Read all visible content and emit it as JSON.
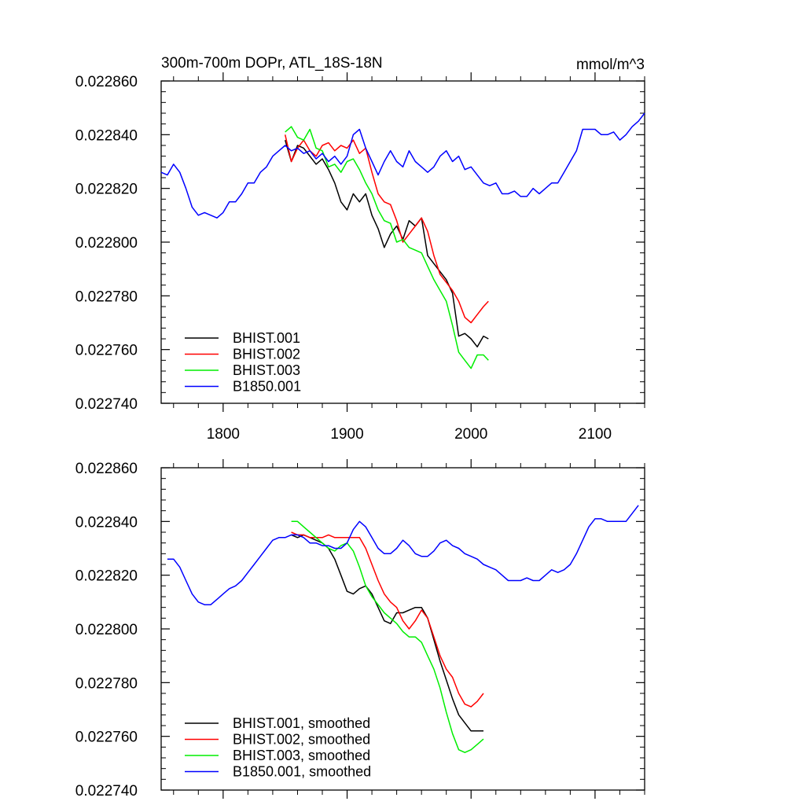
{
  "chart_data": [
    {
      "type": "line",
      "title": "300m-700m DOPr, ATL_18S-18N",
      "units": "mmol/m^3",
      "xlim": [
        1750,
        2140
      ],
      "ylim": [
        0.02274,
        0.02286
      ],
      "xticks": [
        1800,
        1900,
        2000,
        2100
      ],
      "xtick_labels": [
        "1800",
        "1900",
        "2000",
        "2100"
      ],
      "yticks": [
        0.02274,
        0.02276,
        0.02278,
        0.0228,
        0.02282,
        0.02284,
        0.02286
      ],
      "ytick_labels": [
        "0.022740",
        "0.022760",
        "0.022780",
        "0.022800",
        "0.022820",
        "0.022840",
        "0.022860"
      ],
      "legend_position": "bottom-left",
      "series": [
        {
          "name": "BHIST.001",
          "color": "#000000",
          "x": [
            1850,
            1855,
            1860,
            1865,
            1870,
            1875,
            1880,
            1885,
            1890,
            1895,
            1900,
            1905,
            1910,
            1915,
            1920,
            1925,
            1930,
            1935,
            1940,
            1945,
            1950,
            1955,
            1960,
            1965,
            1970,
            1975,
            1980,
            1985,
            1990,
            1995,
            2000,
            2005,
            2010,
            2014
          ],
          "values": [
            0.022838,
            0.02283,
            0.022836,
            0.022835,
            0.022832,
            0.022829,
            0.022831,
            0.022827,
            0.022822,
            0.022815,
            0.022812,
            0.022818,
            0.022815,
            0.022818,
            0.02281,
            0.022805,
            0.022798,
            0.022803,
            0.022806,
            0.022801,
            0.022808,
            0.022806,
            0.022809,
            0.022795,
            0.022792,
            0.022789,
            0.022786,
            0.022781,
            0.022765,
            0.022766,
            0.022764,
            0.022761,
            0.022765,
            0.022764
          ]
        },
        {
          "name": "BHIST.002",
          "color": "#ff0000",
          "x": [
            1850,
            1855,
            1860,
            1865,
            1870,
            1875,
            1880,
            1885,
            1890,
            1895,
            1900,
            1905,
            1910,
            1915,
            1920,
            1925,
            1930,
            1935,
            1940,
            1945,
            1950,
            1955,
            1960,
            1965,
            1970,
            1975,
            1980,
            1985,
            1990,
            1995,
            2000,
            2005,
            2010,
            2014
          ],
          "values": [
            0.02284,
            0.02283,
            0.022835,
            0.022838,
            0.022834,
            0.022832,
            0.022836,
            0.022837,
            0.022834,
            0.022836,
            0.022835,
            0.022838,
            0.022833,
            0.022835,
            0.022826,
            0.022818,
            0.022815,
            0.022814,
            0.022808,
            0.0228,
            0.022803,
            0.022806,
            0.022809,
            0.022804,
            0.022795,
            0.022788,
            0.022785,
            0.022782,
            0.022778,
            0.022772,
            0.02277,
            0.022773,
            0.022776,
            0.022778
          ]
        },
        {
          "name": "BHIST.003",
          "color": "#00ee00",
          "x": [
            1850,
            1855,
            1860,
            1865,
            1870,
            1875,
            1880,
            1885,
            1890,
            1895,
            1900,
            1905,
            1910,
            1915,
            1920,
            1925,
            1930,
            1935,
            1940,
            1945,
            1950,
            1955,
            1960,
            1965,
            1970,
            1975,
            1980,
            1985,
            1990,
            1995,
            2000,
            2005,
            2010,
            2014
          ],
          "values": [
            0.022841,
            0.022843,
            0.022839,
            0.022838,
            0.022842,
            0.022835,
            0.022834,
            0.022828,
            0.022829,
            0.022826,
            0.02283,
            0.022831,
            0.022827,
            0.022822,
            0.022818,
            0.022812,
            0.022808,
            0.022807,
            0.0228,
            0.022801,
            0.022798,
            0.022797,
            0.022796,
            0.022791,
            0.022786,
            0.022782,
            0.022778,
            0.022769,
            0.022759,
            0.022756,
            0.022753,
            0.022758,
            0.022758,
            0.022756
          ]
        },
        {
          "name": "B1850.001",
          "color": "#0000ff",
          "x": [
            1750,
            1755,
            1760,
            1765,
            1770,
            1775,
            1780,
            1785,
            1790,
            1795,
            1800,
            1805,
            1810,
            1815,
            1820,
            1825,
            1830,
            1835,
            1840,
            1845,
            1850,
            1855,
            1860,
            1865,
            1870,
            1875,
            1880,
            1885,
            1890,
            1895,
            1900,
            1905,
            1910,
            1915,
            1920,
            1925,
            1930,
            1935,
            1940,
            1945,
            1950,
            1955,
            1960,
            1965,
            1970,
            1975,
            1980,
            1985,
            1990,
            1995,
            2000,
            2005,
            2010,
            2015,
            2020,
            2025,
            2030,
            2035,
            2040,
            2045,
            2050,
            2055,
            2060,
            2065,
            2070,
            2075,
            2080,
            2085,
            2090,
            2095,
            2100,
            2105,
            2110,
            2115,
            2120,
            2125,
            2130,
            2135,
            2140
          ],
          "values": [
            0.022826,
            0.022825,
            0.022829,
            0.022826,
            0.02282,
            0.022813,
            0.02281,
            0.022811,
            0.02281,
            0.022809,
            0.022811,
            0.022815,
            0.022815,
            0.022818,
            0.022822,
            0.022822,
            0.022826,
            0.022828,
            0.022832,
            0.022834,
            0.022836,
            0.022834,
            0.022835,
            0.022833,
            0.022834,
            0.022831,
            0.022833,
            0.02283,
            0.022832,
            0.022829,
            0.022832,
            0.02284,
            0.022842,
            0.022835,
            0.02283,
            0.022825,
            0.02283,
            0.022834,
            0.02283,
            0.022828,
            0.022834,
            0.02283,
            0.022828,
            0.022826,
            0.022828,
            0.022832,
            0.022834,
            0.02283,
            0.022832,
            0.022827,
            0.022828,
            0.022825,
            0.022822,
            0.022821,
            0.022822,
            0.022818,
            0.022818,
            0.022819,
            0.022817,
            0.022817,
            0.02282,
            0.022818,
            0.02282,
            0.022822,
            0.022822,
            0.022826,
            0.02283,
            0.022834,
            0.022842,
            0.022842,
            0.022842,
            0.02284,
            0.02284,
            0.022841,
            0.022838,
            0.02284,
            0.022843,
            0.022845,
            0.022848
          ]
        }
      ]
    },
    {
      "type": "line",
      "title": "",
      "xlim": [
        1750,
        2140
      ],
      "ylim": [
        0.02274,
        0.02286
      ],
      "xticks": [
        1800,
        1900,
        2000,
        2100
      ],
      "yticks": [
        0.02274,
        0.02276,
        0.02278,
        0.0228,
        0.02282,
        0.02284,
        0.02286
      ],
      "ytick_labels": [
        "0.022740",
        "0.022760",
        "0.022780",
        "0.022800",
        "0.022820",
        "0.022840",
        "0.022860"
      ],
      "legend_position": "bottom-left",
      "series": [
        {
          "name": "BHIST.001, smoothed",
          "color": "#000000",
          "x": [
            1855,
            1860,
            1865,
            1870,
            1875,
            1880,
            1885,
            1890,
            1895,
            1900,
            1905,
            1910,
            1915,
            1920,
            1925,
            1930,
            1935,
            1940,
            1945,
            1950,
            1955,
            1960,
            1965,
            1970,
            1975,
            1980,
            1985,
            1990,
            1995,
            2000,
            2005,
            2010
          ],
          "values": [
            0.022835,
            0.022834,
            0.022835,
            0.022834,
            0.022833,
            0.022832,
            0.02283,
            0.022826,
            0.02282,
            0.022814,
            0.022813,
            0.022815,
            0.022816,
            0.022813,
            0.022808,
            0.022803,
            0.022802,
            0.022806,
            0.022806,
            0.022807,
            0.022808,
            0.022808,
            0.022804,
            0.022796,
            0.022788,
            0.022781,
            0.022774,
            0.022768,
            0.022765,
            0.022762,
            0.022762,
            0.022762
          ]
        },
        {
          "name": "BHIST.002, smoothed",
          "color": "#ff0000",
          "x": [
            1855,
            1860,
            1865,
            1870,
            1875,
            1880,
            1885,
            1890,
            1895,
            1900,
            1905,
            1910,
            1915,
            1920,
            1925,
            1930,
            1935,
            1940,
            1945,
            1950,
            1955,
            1960,
            1965,
            1970,
            1975,
            1980,
            1985,
            1990,
            1995,
            2000,
            2005,
            2010
          ],
          "values": [
            0.022836,
            0.022835,
            0.022835,
            0.022834,
            0.022834,
            0.022834,
            0.022835,
            0.022834,
            0.022834,
            0.022834,
            0.022834,
            0.022834,
            0.02283,
            0.022824,
            0.022818,
            0.022813,
            0.02281,
            0.022808,
            0.022803,
            0.0228,
            0.022803,
            0.022807,
            0.022804,
            0.022797,
            0.02279,
            0.022785,
            0.022782,
            0.022776,
            0.022772,
            0.022771,
            0.022773,
            0.022776
          ]
        },
        {
          "name": "BHIST.003, smoothed",
          "color": "#00ee00",
          "x": [
            1855,
            1860,
            1865,
            1870,
            1875,
            1880,
            1885,
            1890,
            1895,
            1900,
            1905,
            1910,
            1915,
            1920,
            1925,
            1930,
            1935,
            1940,
            1945,
            1950,
            1955,
            1960,
            1965,
            1970,
            1975,
            1980,
            1985,
            1990,
            1995,
            2000,
            2005,
            2010
          ],
          "values": [
            0.02284,
            0.02284,
            0.022838,
            0.022836,
            0.022834,
            0.022832,
            0.02283,
            0.022829,
            0.022831,
            0.022832,
            0.022829,
            0.022823,
            0.022816,
            0.022812,
            0.022809,
            0.022806,
            0.022804,
            0.022802,
            0.022799,
            0.022797,
            0.022797,
            0.022795,
            0.02279,
            0.022785,
            0.022778,
            0.022769,
            0.022761,
            0.022755,
            0.022754,
            0.022755,
            0.022757,
            0.022759
          ]
        },
        {
          "name": "B1850.001, smoothed",
          "color": "#0000ff",
          "x": [
            1755,
            1760,
            1765,
            1770,
            1775,
            1780,
            1785,
            1790,
            1795,
            1800,
            1805,
            1810,
            1815,
            1820,
            1825,
            1830,
            1835,
            1840,
            1845,
            1850,
            1855,
            1860,
            1865,
            1870,
            1875,
            1880,
            1885,
            1890,
            1895,
            1900,
            1905,
            1910,
            1915,
            1920,
            1925,
            1930,
            1935,
            1940,
            1945,
            1950,
            1955,
            1960,
            1965,
            1970,
            1975,
            1980,
            1985,
            1990,
            1995,
            2000,
            2005,
            2010,
            2015,
            2020,
            2025,
            2030,
            2035,
            2040,
            2045,
            2050,
            2055,
            2060,
            2065,
            2070,
            2075,
            2080,
            2085,
            2090,
            2095,
            2100,
            2105,
            2110,
            2115,
            2120,
            2125,
            2130,
            2135
          ],
          "values": [
            0.022826,
            0.022826,
            0.022823,
            0.022818,
            0.022813,
            0.02281,
            0.022809,
            0.022809,
            0.022811,
            0.022813,
            0.022815,
            0.022816,
            0.022818,
            0.022821,
            0.022824,
            0.022827,
            0.02283,
            0.022833,
            0.022834,
            0.022834,
            0.022835,
            0.022835,
            0.022834,
            0.022832,
            0.022832,
            0.022831,
            0.022831,
            0.02283,
            0.02283,
            0.022832,
            0.022837,
            0.02284,
            0.022838,
            0.022834,
            0.02283,
            0.022828,
            0.022828,
            0.02283,
            0.022833,
            0.022831,
            0.022828,
            0.022827,
            0.022827,
            0.022829,
            0.022832,
            0.022833,
            0.022831,
            0.02283,
            0.022828,
            0.022827,
            0.022826,
            0.022824,
            0.022823,
            0.022822,
            0.02282,
            0.022818,
            0.022818,
            0.022818,
            0.022819,
            0.022818,
            0.022818,
            0.02282,
            0.022822,
            0.022821,
            0.022822,
            0.022824,
            0.022828,
            0.022833,
            0.022838,
            0.022841,
            0.022841,
            0.02284,
            0.02284,
            0.02284,
            0.02284,
            0.022843,
            0.022846
          ]
        }
      ]
    }
  ]
}
